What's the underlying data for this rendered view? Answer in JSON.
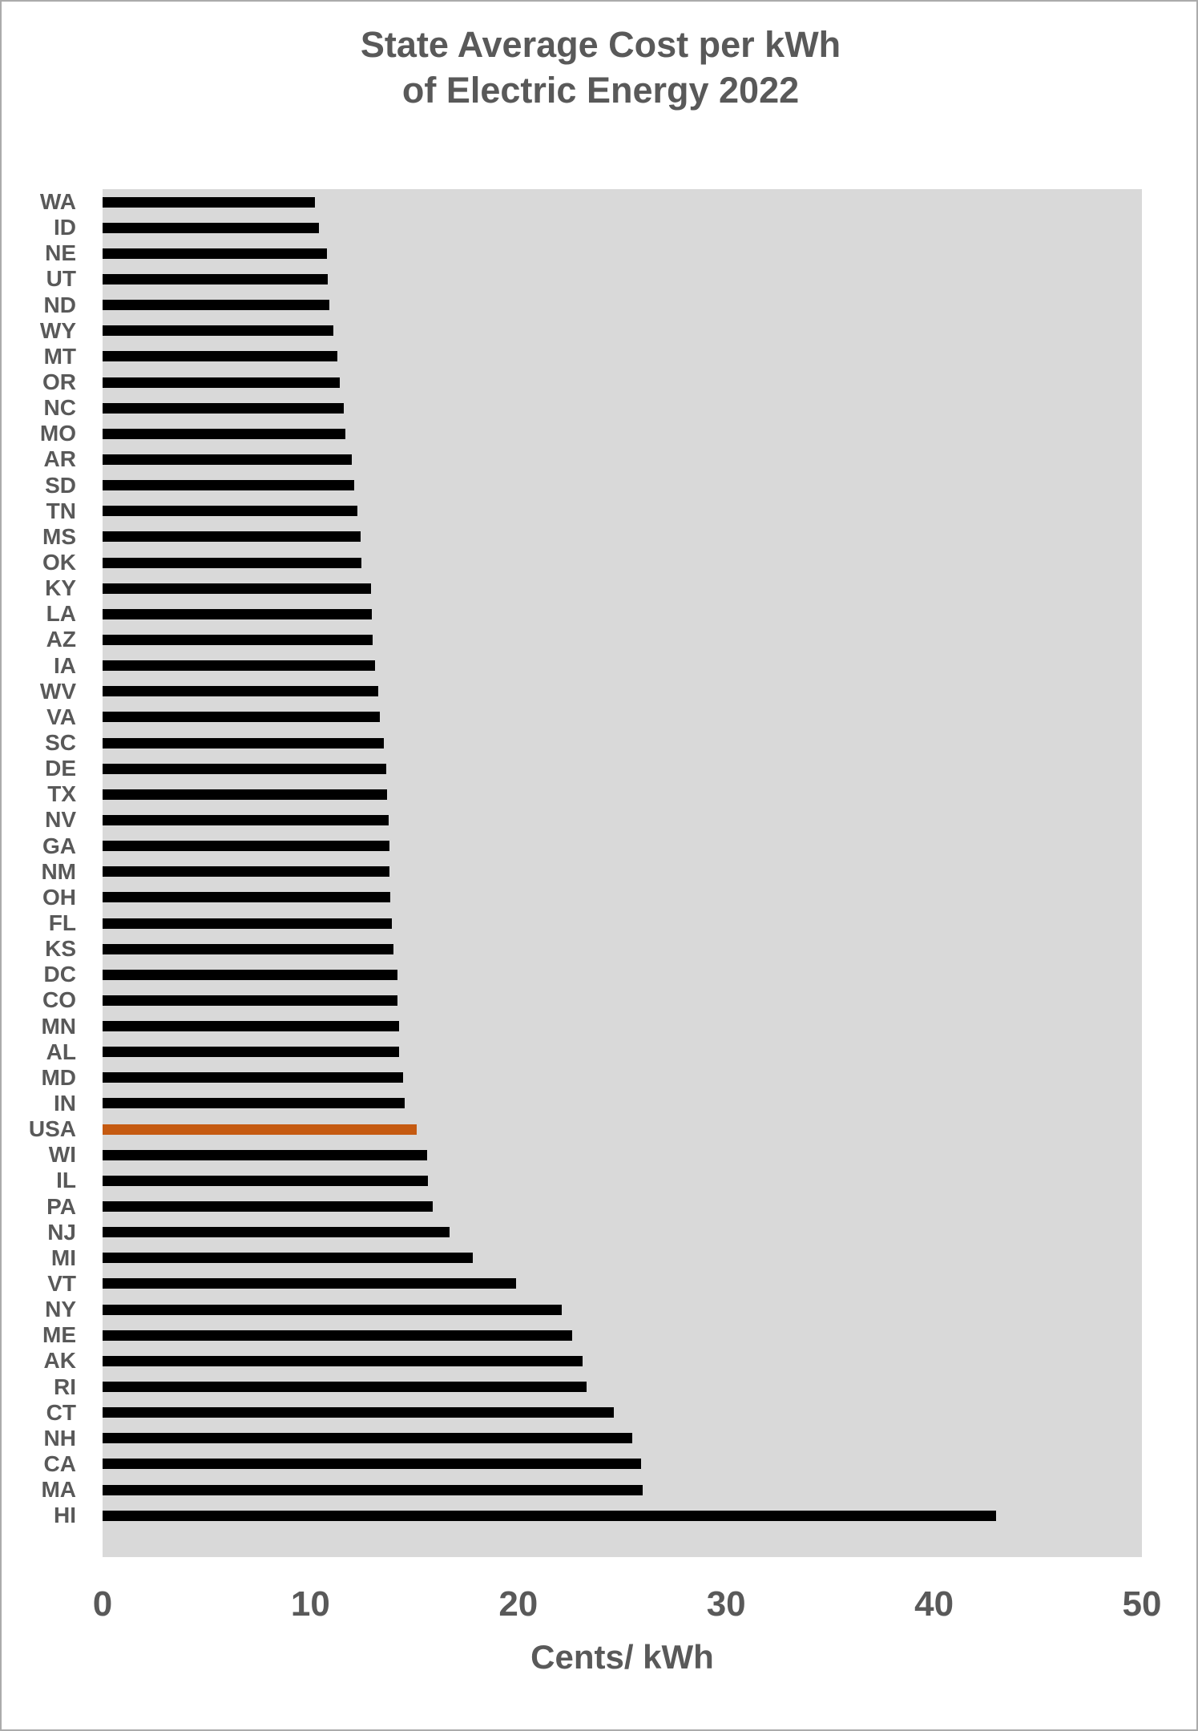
{
  "page": {
    "background": "#ffffff",
    "border_color": "#ababab"
  },
  "title": {
    "line1": "State Average Cost per kWh",
    "line2": "of Electric Energy 2022"
  },
  "chart_data": {
    "type": "bar",
    "orientation": "horizontal",
    "title": "State Average Cost per kWh of Electric Energy 2022",
    "xlabel": "Cents/ kWh",
    "ylabel": "",
    "xlim": [
      0,
      50
    ],
    "x_ticks": [
      0,
      10,
      20,
      30,
      40,
      50
    ],
    "grid": false,
    "legend": false,
    "plot_background": "#d9d9d9",
    "bar_color": "#000000",
    "highlight_category": "USA",
    "highlight_color": "#c55a11",
    "text_color": "#595959",
    "categories": [
      "WA",
      "ID",
      "NE",
      "UT",
      "ND",
      "WY",
      "MT",
      "OR",
      "NC",
      "MO",
      "AR",
      "SD",
      "TN",
      "MS",
      "OK",
      "KY",
      "LA",
      "AZ",
      "IA",
      "WV",
      "VA",
      "SC",
      "DE",
      "TX",
      "NV",
      "GA",
      "NM",
      "OH",
      "FL",
      "KS",
      "DC",
      "CO",
      "MN",
      "AL",
      "MD",
      "IN",
      "USA",
      "WI",
      "IL",
      "PA",
      "NJ",
      "MI",
      "VT",
      "NY",
      "ME",
      "AK",
      "RI",
      "CT",
      "NH",
      "CA",
      "MA",
      "HI"
    ],
    "values": [
      10.2,
      10.4,
      10.8,
      10.85,
      10.9,
      11.1,
      11.3,
      11.4,
      11.6,
      11.7,
      12.0,
      12.1,
      12.25,
      12.4,
      12.45,
      12.9,
      12.95,
      13.0,
      13.1,
      13.25,
      13.35,
      13.55,
      13.65,
      13.7,
      13.75,
      13.8,
      13.8,
      13.85,
      13.9,
      14.0,
      14.2,
      14.2,
      14.25,
      14.25,
      14.45,
      14.55,
      15.1,
      15.6,
      15.65,
      15.9,
      16.7,
      17.8,
      19.9,
      22.1,
      22.6,
      23.1,
      23.3,
      24.6,
      25.5,
      25.9,
      26.0,
      43.0
    ]
  }
}
